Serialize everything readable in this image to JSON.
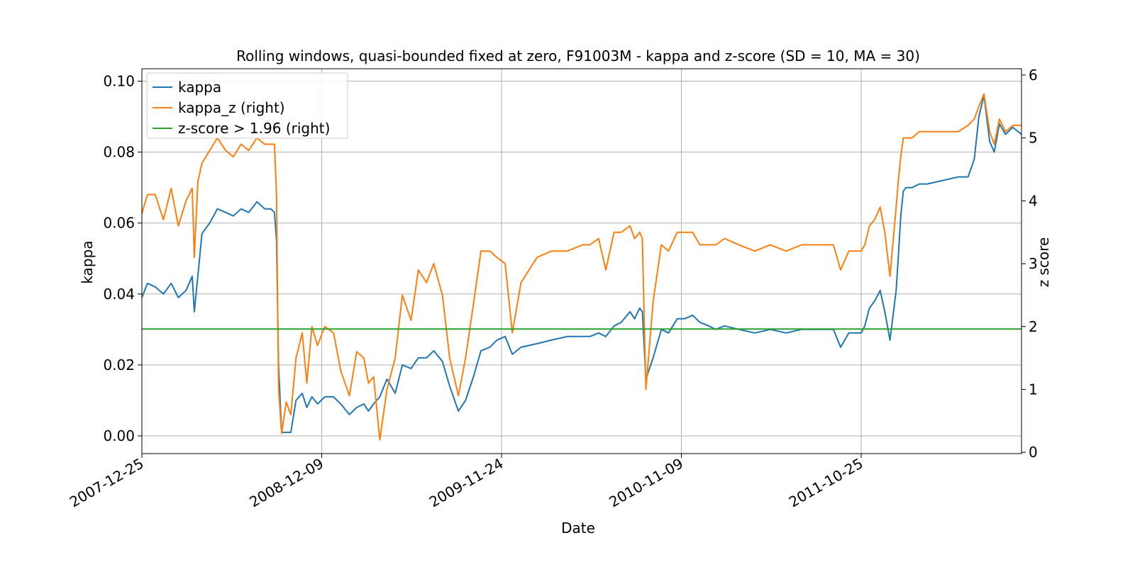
{
  "chart_data": {
    "type": "line",
    "title": "Rolling windows, quasi-bounded fixed at zero, F91003M - kappa and z-score (SD = 10, MA = 30)",
    "xlabel": "Date",
    "ylabel": "kappa",
    "ylabel_right": "z score",
    "x_ticks": [
      "2007-12-25",
      "2008-12-09",
      "2009-11-24",
      "2010-11-09",
      "2011-10-25"
    ],
    "xlim": [
      "2007-12-25",
      "2012-09-01"
    ],
    "ylim": [
      -0.005,
      0.1035
    ],
    "ylim_right": [
      -0.02,
      6.1
    ],
    "y_ticks": [
      "0.00",
      "0.02",
      "0.04",
      "0.06",
      "0.08",
      "0.10"
    ],
    "y_ticks_right": [
      "0",
      "1",
      "2",
      "3",
      "4",
      "5",
      "6"
    ],
    "grid": true,
    "legend_position": "top-left",
    "colors": {
      "kappa": "#1f77b4",
      "kappa_z": "#ff7f0e",
      "threshold": "#2ca02c"
    },
    "series": [
      {
        "name": "kappa",
        "axis": "left",
        "x": [
          "2007-12-25",
          "2008-01-05",
          "2008-01-20",
          "2008-02-05",
          "2008-02-20",
          "2008-03-05",
          "2008-03-20",
          "2008-04-01",
          "2008-04-05",
          "2008-04-12",
          "2008-04-20",
          "2008-05-05",
          "2008-05-20",
          "2008-06-05",
          "2008-06-20",
          "2008-07-05",
          "2008-07-20",
          "2008-08-05",
          "2008-08-20",
          "2008-09-01",
          "2008-09-08",
          "2008-09-12",
          "2008-09-16",
          "2008-09-22",
          "2008-10-01",
          "2008-10-10",
          "2008-10-20",
          "2008-11-01",
          "2008-11-10",
          "2008-11-20",
          "2008-12-01",
          "2008-12-15",
          "2009-01-01",
          "2009-01-15",
          "2009-02-01",
          "2009-02-15",
          "2009-03-01",
          "2009-03-10",
          "2009-03-20",
          "2009-04-01",
          "2009-04-15",
          "2009-05-01",
          "2009-05-15",
          "2009-06-01",
          "2009-06-15",
          "2009-07-01",
          "2009-07-15",
          "2009-08-01",
          "2009-08-15",
          "2009-09-01",
          "2009-09-15",
          "2009-10-01",
          "2009-10-15",
          "2009-11-01",
          "2009-11-15",
          "2009-12-01",
          "2009-12-15",
          "2010-01-01",
          "2010-02-01",
          "2010-03-01",
          "2010-04-01",
          "2010-05-01",
          "2010-05-15",
          "2010-06-01",
          "2010-06-15",
          "2010-07-01",
          "2010-07-15",
          "2010-08-01",
          "2010-08-10",
          "2010-08-20",
          "2010-08-25",
          "2010-09-01",
          "2010-09-15",
          "2010-10-01",
          "2010-10-15",
          "2010-11-01",
          "2010-11-15",
          "2010-12-01",
          "2010-12-15",
          "2011-01-01",
          "2011-01-15",
          "2011-02-01",
          "2011-03-01",
          "2011-04-01",
          "2011-05-01",
          "2011-06-01",
          "2011-07-01",
          "2011-07-15",
          "2011-08-01",
          "2011-08-15",
          "2011-09-01",
          "2011-09-15",
          "2011-10-01",
          "2011-10-25",
          "2011-11-01",
          "2011-11-10",
          "2011-11-20",
          "2011-12-01",
          "2011-12-10",
          "2011-12-20",
          "2012-01-01",
          "2012-01-05",
          "2012-01-10",
          "2012-01-15",
          "2012-01-20",
          "2012-02-01",
          "2012-02-15",
          "2012-03-01",
          "2012-04-01",
          "2012-05-01",
          "2012-05-20",
          "2012-06-01",
          "2012-06-10",
          "2012-06-20",
          "2012-07-01",
          "2012-07-10",
          "2012-07-20",
          "2012-08-01",
          "2012-08-15",
          "2012-09-01"
        ],
        "values": [
          0.039,
          0.043,
          0.042,
          0.04,
          0.043,
          0.039,
          0.041,
          0.045,
          0.035,
          0.045,
          0.057,
          0.06,
          0.064,
          0.063,
          0.062,
          0.064,
          0.063,
          0.066,
          0.064,
          0.064,
          0.063,
          0.055,
          0.02,
          0.001,
          0.001,
          0.001,
          0.01,
          0.012,
          0.008,
          0.011,
          0.009,
          0.011,
          0.011,
          0.009,
          0.006,
          0.008,
          0.009,
          0.007,
          0.009,
          0.011,
          0.016,
          0.012,
          0.02,
          0.019,
          0.022,
          0.022,
          0.024,
          0.021,
          0.014,
          0.007,
          0.01,
          0.017,
          0.024,
          0.025,
          0.027,
          0.028,
          0.023,
          0.025,
          0.026,
          0.027,
          0.028,
          0.028,
          0.028,
          0.029,
          0.028,
          0.031,
          0.032,
          0.035,
          0.033,
          0.036,
          0.035,
          0.016,
          0.022,
          0.03,
          0.029,
          0.033,
          0.033,
          0.034,
          0.032,
          0.031,
          0.03,
          0.031,
          0.03,
          0.029,
          0.03,
          0.029,
          0.03,
          0.03,
          0.03,
          0.03,
          0.03,
          0.025,
          0.029,
          0.029,
          0.031,
          0.036,
          0.038,
          0.041,
          0.035,
          0.027,
          0.041,
          0.05,
          0.062,
          0.069,
          0.07,
          0.07,
          0.071,
          0.071,
          0.072,
          0.073,
          0.073,
          0.078,
          0.09,
          0.096,
          0.083,
          0.08,
          0.088,
          0.085,
          0.087,
          0.085
        ],
        "values_right_axis_z": [
          3.8,
          4.1,
          4.1,
          3.7,
          4.2,
          3.6,
          4.0,
          4.2,
          3.1,
          4.3,
          4.6,
          4.8,
          5.0,
          4.8,
          4.7,
          4.9,
          4.8,
          5.0,
          4.9,
          4.9,
          4.9,
          4.1,
          1.0,
          0.3,
          0.8,
          0.6,
          1.5,
          1.9,
          1.1,
          2.0,
          1.7,
          2.0,
          1.9,
          1.3,
          0.9,
          1.6,
          1.5,
          1.1,
          1.2,
          0.2,
          1.0,
          1.5,
          2.5,
          2.1,
          2.9,
          2.7,
          3.0,
          2.5,
          1.5,
          0.9,
          1.5,
          2.4,
          3.2,
          3.2,
          3.1,
          3.0,
          1.9,
          2.7,
          3.1,
          3.2,
          3.2,
          3.3,
          3.3,
          3.4,
          2.9,
          3.5,
          3.5,
          3.6,
          3.4,
          3.5,
          3.4,
          1.0,
          2.4,
          3.3,
          3.2,
          3.5,
          3.5,
          3.5,
          3.3,
          3.3,
          3.3,
          3.4,
          3.3,
          3.2,
          3.3,
          3.2,
          3.3,
          3.3,
          3.3,
          3.3,
          3.3,
          2.9,
          3.2,
          3.2,
          3.3,
          3.6,
          3.7,
          3.9,
          3.5,
          2.8,
          3.9,
          4.3,
          4.7,
          5.0,
          5.0,
          5.0,
          5.1,
          5.1,
          5.1,
          5.1,
          5.2,
          5.3,
          5.5,
          5.7,
          5.1,
          4.9,
          5.3,
          5.1,
          5.2,
          5.2
        ]
      },
      {
        "name": "kappa_z (right)",
        "axis": "right",
        "x": [
          "2007-12-25",
          "2008-01-05",
          "2008-01-20",
          "2008-02-05",
          "2008-02-20",
          "2008-03-05",
          "2008-03-20",
          "2008-04-01",
          "2008-04-05",
          "2008-04-12",
          "2008-04-20",
          "2008-05-05",
          "2008-05-20",
          "2008-06-05",
          "2008-06-20",
          "2008-07-05",
          "2008-07-20",
          "2008-08-05",
          "2008-08-20",
          "2008-09-01",
          "2008-09-08",
          "2008-09-12",
          "2008-09-16",
          "2008-09-22",
          "2008-10-01",
          "2008-10-10",
          "2008-10-20",
          "2008-11-01",
          "2008-11-10",
          "2008-11-20",
          "2008-12-01",
          "2008-12-15",
          "2009-01-01",
          "2009-01-15",
          "2009-02-01",
          "2009-02-15",
          "2009-03-01",
          "2009-03-10",
          "2009-03-20",
          "2009-04-01",
          "2009-04-15",
          "2009-05-01",
          "2009-05-15",
          "2009-06-01",
          "2009-06-15",
          "2009-07-01",
          "2009-07-15",
          "2009-08-01",
          "2009-08-15",
          "2009-09-01",
          "2009-09-15",
          "2009-10-01",
          "2009-10-15",
          "2009-11-01",
          "2009-11-15",
          "2009-12-01",
          "2009-12-15",
          "2010-01-01",
          "2010-02-01",
          "2010-03-01",
          "2010-04-01",
          "2010-05-01",
          "2010-05-15",
          "2010-06-01",
          "2010-06-15",
          "2010-07-01",
          "2010-07-15",
          "2010-08-01",
          "2010-08-10",
          "2010-08-20",
          "2010-08-25",
          "2010-09-01",
          "2010-09-15",
          "2010-10-01",
          "2010-10-15",
          "2010-11-01",
          "2010-11-15",
          "2010-12-01",
          "2010-12-15",
          "2011-01-01",
          "2011-01-15",
          "2011-02-01",
          "2011-03-01",
          "2011-04-01",
          "2011-05-01",
          "2011-06-01",
          "2011-07-01",
          "2011-07-15",
          "2011-08-01",
          "2011-08-15",
          "2011-09-01",
          "2011-09-15",
          "2011-10-01",
          "2011-10-25",
          "2011-11-01",
          "2011-11-10",
          "2011-11-20",
          "2011-12-01",
          "2011-12-10",
          "2011-12-20",
          "2012-01-01",
          "2012-01-05",
          "2012-01-10",
          "2012-01-15",
          "2012-01-20",
          "2012-02-01",
          "2012-02-15",
          "2012-03-01",
          "2012-04-01",
          "2012-05-01",
          "2012-05-20",
          "2012-06-01",
          "2012-06-10",
          "2012-06-20",
          "2012-07-01",
          "2012-07-10",
          "2012-07-20",
          "2012-08-01",
          "2012-08-15",
          "2012-09-01"
        ],
        "values": [
          3.8,
          4.1,
          4.1,
          3.7,
          4.2,
          3.6,
          4.0,
          4.2,
          3.1,
          4.3,
          4.6,
          4.8,
          5.0,
          4.8,
          4.7,
          4.9,
          4.8,
          5.0,
          4.9,
          4.9,
          4.9,
          4.1,
          1.0,
          0.3,
          0.8,
          0.6,
          1.5,
          1.9,
          1.1,
          2.0,
          1.7,
          2.0,
          1.9,
          1.3,
          0.9,
          1.6,
          1.5,
          1.1,
          1.2,
          0.2,
          1.0,
          1.5,
          2.5,
          2.1,
          2.9,
          2.7,
          3.0,
          2.5,
          1.5,
          0.9,
          1.5,
          2.4,
          3.2,
          3.2,
          3.1,
          3.0,
          1.9,
          2.7,
          3.1,
          3.2,
          3.2,
          3.3,
          3.3,
          3.4,
          2.9,
          3.5,
          3.5,
          3.6,
          3.4,
          3.5,
          3.4,
          1.0,
          2.4,
          3.3,
          3.2,
          3.5,
          3.5,
          3.5,
          3.3,
          3.3,
          3.3,
          3.4,
          3.3,
          3.2,
          3.3,
          3.2,
          3.3,
          3.3,
          3.3,
          3.3,
          3.3,
          2.9,
          3.2,
          3.2,
          3.3,
          3.6,
          3.7,
          3.9,
          3.5,
          2.8,
          3.9,
          4.3,
          4.7,
          5.0,
          5.0,
          5.0,
          5.1,
          5.1,
          5.1,
          5.1,
          5.2,
          5.3,
          5.5,
          5.7,
          5.1,
          4.9,
          5.3,
          5.1,
          5.2,
          5.2
        ]
      },
      {
        "name": "z-score > 1.96 (right)",
        "axis": "right",
        "x": [
          "2007-12-25",
          "2012-09-01"
        ],
        "values": [
          1.96,
          1.96
        ]
      }
    ],
    "legend": [
      "kappa",
      "kappa_z (right)",
      "z-score > 1.96 (right)"
    ]
  }
}
